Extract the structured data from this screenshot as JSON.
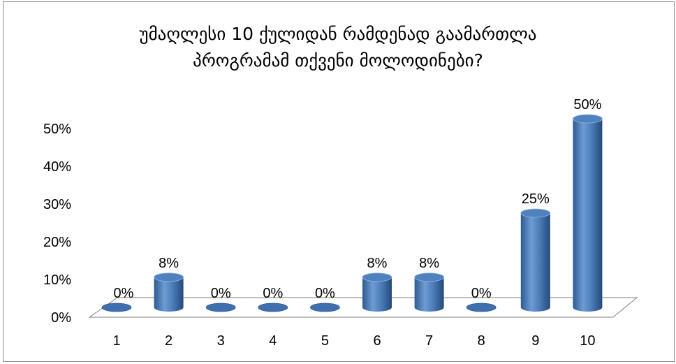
{
  "chart_data": {
    "type": "bar",
    "title_lines": [
      "უმაღლესი 10 ქულიდან რამდენად გაამართლა",
      "პროგრამამ თქვენი მოლოდინები?"
    ],
    "categories": [
      "1",
      "2",
      "3",
      "4",
      "5",
      "6",
      "7",
      "8",
      "9",
      "10"
    ],
    "values": [
      0,
      8,
      0,
      0,
      0,
      8,
      8,
      0,
      25,
      50
    ],
    "data_labels": [
      "0%",
      "8%",
      "0%",
      "0%",
      "0%",
      "8%",
      "8%",
      "0%",
      "25%",
      "50%"
    ],
    "y_ticks": [
      0,
      10,
      20,
      30,
      40,
      50
    ],
    "y_tick_labels": [
      "0%",
      "10%",
      "20%",
      "30%",
      "40%",
      "50%"
    ],
    "ylim": [
      0,
      50
    ],
    "grid": false,
    "legend": "none",
    "bar_style": "3d-cylinder",
    "colors": {
      "bar": "#4f81bd",
      "bar_dark": "#2e5a92",
      "bar_light": "#8fb4e3",
      "floor_edge": "#7f7f7f"
    }
  }
}
